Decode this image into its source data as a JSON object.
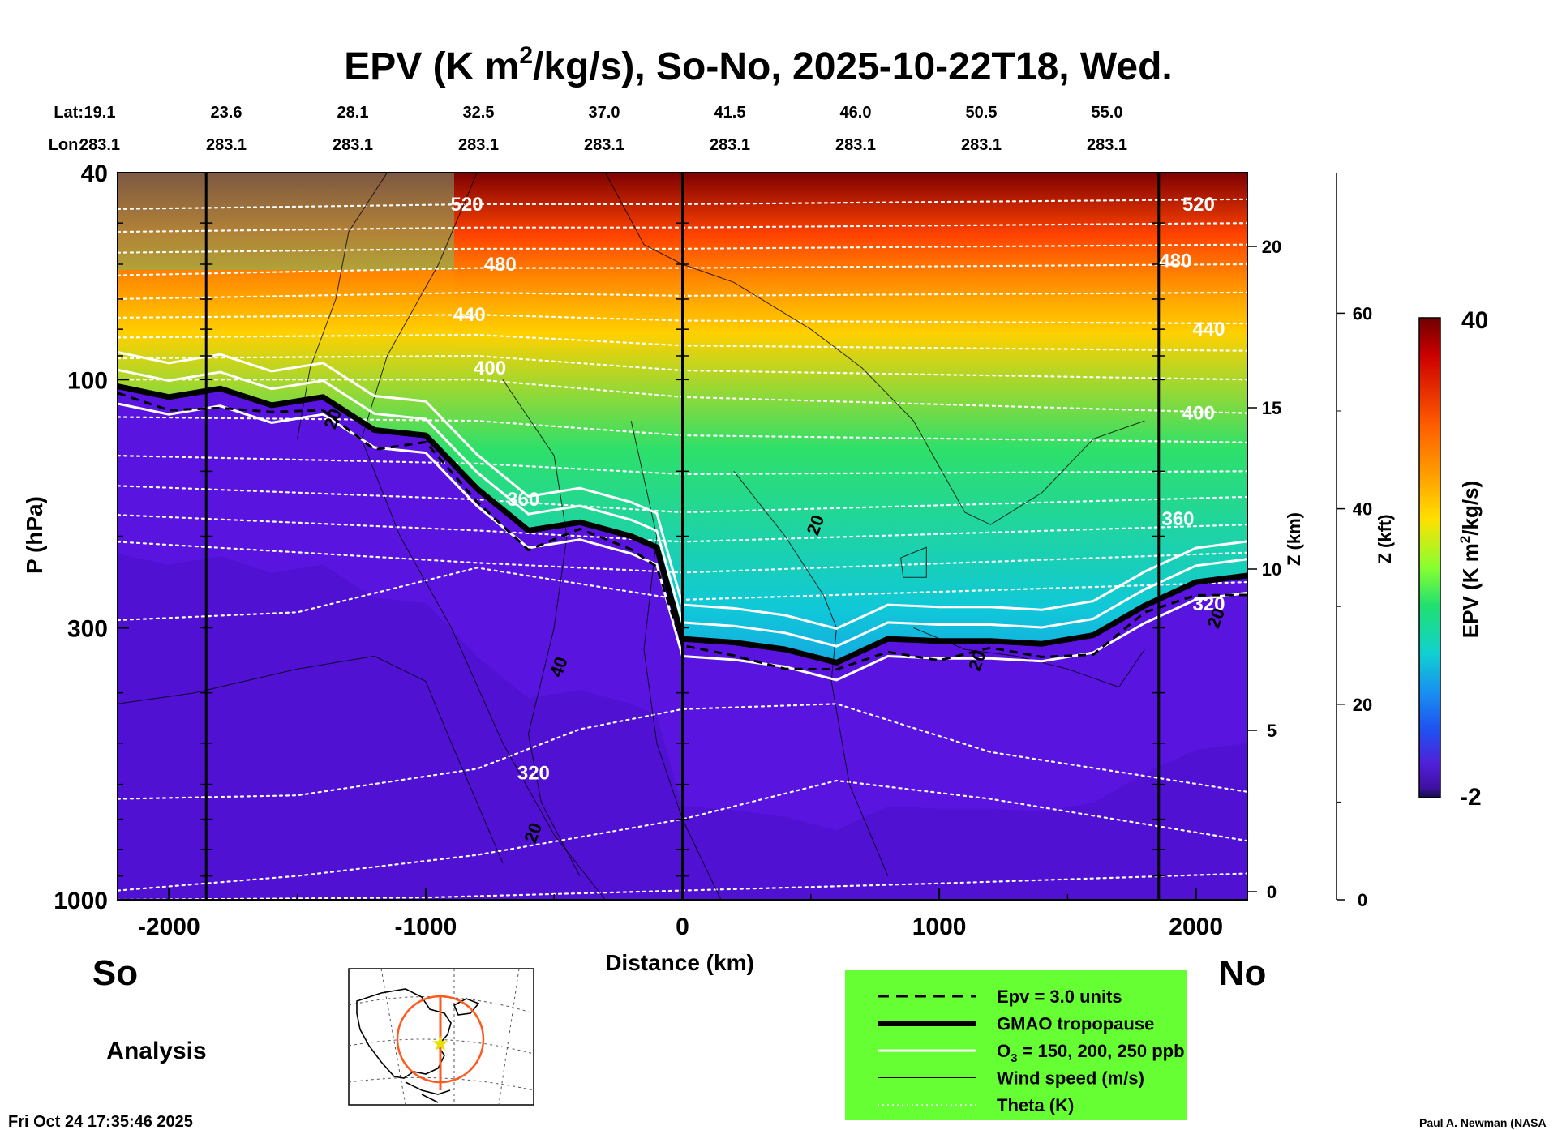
{
  "chart_data": {
    "type": "heatmap",
    "title": "EPV (K m²/kg/s), So-No, 2025-10-22T18, Wed.",
    "title_parts": {
      "a": "EPV (K m",
      "sup": "2",
      "b": "/kg/s), So-No, 2025-10-22T18, Wed."
    },
    "lat_label": "Lat:",
    "lon_label": "Lon:",
    "lat_ticks": [
      "19.1",
      "23.6",
      "28.1",
      "32.5",
      "37.0",
      "41.5",
      "46.0",
      "50.5",
      "55.0"
    ],
    "lon_ticks": [
      "283.1",
      "283.1",
      "283.1",
      "283.1",
      "283.1",
      "283.1",
      "283.1",
      "283.1",
      "283.1"
    ],
    "xlabel": "Distance (km)",
    "xlim": [
      -2200,
      2200
    ],
    "xticks": [
      -2000,
      -1000,
      0,
      1000,
      2000
    ],
    "ylabel": "P (hPa)",
    "ylim": [
      1000,
      40
    ],
    "yticks": [
      40,
      100,
      300,
      1000
    ],
    "z_km_label": "Z (km)",
    "z_km_ticks": [
      0,
      5,
      10,
      15,
      20
    ],
    "z_kft_label": "Z (kft)",
    "z_kft_ticks": [
      0,
      20,
      40,
      60
    ],
    "end_labels": {
      "south": "So",
      "north": "No"
    },
    "analysis_label": "Analysis",
    "colorbar": {
      "label": "EPV (K m²/kg/s)",
      "label_main": "EPV (K m",
      "label_sup": "2",
      "label_end": "/kg/s)",
      "min": -2,
      "max": 40,
      "min_label": "-2",
      "max_label": "40"
    },
    "theta_contour_labels": [
      {
        "text": "520",
        "x": -840,
        "p": 46
      },
      {
        "text": "480",
        "x": -710,
        "p": 60
      },
      {
        "text": "440",
        "x": -830,
        "p": 75
      },
      {
        "text": "400",
        "x": -750,
        "p": 95
      },
      {
        "text": "360",
        "x": -620,
        "p": 170
      },
      {
        "text": "320",
        "x": -580,
        "p": 570
      },
      {
        "text": "520",
        "x": 2010,
        "p": 46
      },
      {
        "text": "480",
        "x": 1920,
        "p": 59
      },
      {
        "text": "440",
        "x": 2050,
        "p": 80
      },
      {
        "text": "400",
        "x": 2010,
        "p": 116
      },
      {
        "text": "360",
        "x": 1930,
        "p": 185
      },
      {
        "text": "320",
        "x": 2050,
        "p": 270
      }
    ],
    "wind_contour_labels": [
      {
        "text": "20",
        "x": -1340,
        "p": 120
      },
      {
        "text": "20",
        "x": 540,
        "p": 192
      },
      {
        "text": "40",
        "x": -460,
        "p": 360
      },
      {
        "text": "20",
        "x": 1170,
        "p": 350
      },
      {
        "text": "20",
        "x": 2100,
        "p": 290
      },
      {
        "text": "20",
        "x": -560,
        "p": 750
      }
    ],
    "tropopause_km": [
      [
        -2200,
        103
      ],
      [
        -2000,
        108
      ],
      [
        -1800,
        104
      ],
      [
        -1600,
        112
      ],
      [
        -1400,
        108
      ],
      [
        -1200,
        125
      ],
      [
        -1000,
        128
      ],
      [
        -800,
        162
      ],
      [
        -600,
        195
      ],
      [
        -400,
        188
      ],
      [
        -200,
        200
      ],
      [
        -100,
        210
      ],
      [
        0,
        315
      ],
      [
        200,
        320
      ],
      [
        400,
        330
      ],
      [
        600,
        350
      ],
      [
        800,
        315
      ],
      [
        1000,
        318
      ],
      [
        1200,
        318
      ],
      [
        1400,
        322
      ],
      [
        1600,
        310
      ],
      [
        1800,
        272
      ],
      [
        2000,
        245
      ],
      [
        2200,
        238
      ]
    ],
    "series": [
      {
        "name": "Epv = 3.0 units"
      },
      {
        "name": "GMAO tropopause"
      },
      {
        "name": "O₃ = 150, 200, 250 ppb"
      },
      {
        "name": "Wind speed (m/s)"
      },
      {
        "name": "Theta (K)"
      }
    ],
    "legend": {
      "items": [
        {
          "text": "Epv = 3.0 units",
          "style": "dashed"
        },
        {
          "text": "GMAO tropopause",
          "style": "thick"
        },
        {
          "text_main": "O",
          "text_sub": "3",
          "text_end": " = 150, 200, 250 ppb",
          "style": "white"
        },
        {
          "text": "Wind speed (m/s)",
          "style": "thin"
        },
        {
          "text": "Theta (K)",
          "style": "dotted"
        }
      ],
      "background": "#66ff33"
    },
    "footer_left": "Fri Oct 24 17:35:46 2025",
    "footer_right": "Paul A. Newman (NASA"
  }
}
